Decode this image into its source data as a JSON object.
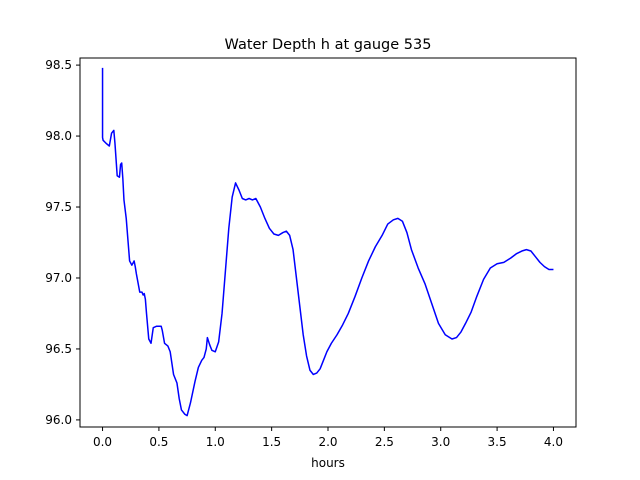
{
  "chart_data": {
    "type": "line",
    "title": "Water Depth h at gauge 535",
    "xlabel": "hours",
    "ylabel": "",
    "xlim": [
      -0.2,
      4.2
    ],
    "ylim": [
      95.95,
      98.55
    ],
    "grid": false,
    "x_ticks": [
      0.0,
      0.5,
      1.0,
      1.5,
      2.0,
      2.5,
      3.0,
      3.5,
      4.0
    ],
    "x_tick_labels": [
      "0.0",
      "0.5",
      "1.0",
      "1.5",
      "2.0",
      "2.5",
      "3.0",
      "3.5",
      "4.0"
    ],
    "y_ticks": [
      96.0,
      96.5,
      97.0,
      97.5,
      98.0,
      98.5
    ],
    "y_tick_labels": [
      "96.0",
      "96.5",
      "97.0",
      "97.5",
      "98.0",
      "98.5"
    ],
    "series": [
      {
        "color": "#0000ff",
        "x": [
          0.0,
          0.0,
          0.005,
          0.03,
          0.06,
          0.08,
          0.1,
          0.11,
          0.13,
          0.15,
          0.16,
          0.17,
          0.18,
          0.19,
          0.21,
          0.24,
          0.26,
          0.28,
          0.29,
          0.3,
          0.33,
          0.35,
          0.36,
          0.37,
          0.38,
          0.39,
          0.41,
          0.43,
          0.45,
          0.48,
          0.52,
          0.53,
          0.55,
          0.58,
          0.6,
          0.63,
          0.66,
          0.68,
          0.7,
          0.73,
          0.75,
          0.78,
          0.82,
          0.85,
          0.88,
          0.9,
          0.92,
          0.93,
          0.95,
          0.97,
          1.0,
          1.03,
          1.06,
          1.09,
          1.12,
          1.15,
          1.18,
          1.21,
          1.24,
          1.27,
          1.3,
          1.33,
          1.36,
          1.4,
          1.44,
          1.48,
          1.52,
          1.56,
          1.6,
          1.63,
          1.66,
          1.69,
          1.72,
          1.75,
          1.78,
          1.81,
          1.84,
          1.87,
          1.9,
          1.93,
          1.96,
          1.99,
          2.03,
          2.08,
          2.13,
          2.18,
          2.24,
          2.3,
          2.36,
          2.42,
          2.48,
          2.53,
          2.58,
          2.62,
          2.66,
          2.7,
          2.74,
          2.8,
          2.86,
          2.92,
          2.98,
          3.04,
          3.1,
          3.14,
          3.18,
          3.22,
          3.27,
          3.32,
          3.38,
          3.44,
          3.5,
          3.56,
          3.62,
          3.67,
          3.72,
          3.76,
          3.8,
          3.84,
          3.88,
          3.92,
          3.96,
          4.0
        ],
        "y": [
          98.48,
          97.99,
          97.97,
          97.95,
          97.93,
          98.02,
          98.04,
          97.95,
          97.72,
          97.71,
          97.8,
          97.81,
          97.7,
          97.55,
          97.42,
          97.12,
          97.09,
          97.12,
          97.08,
          97.03,
          96.9,
          96.9,
          96.88,
          96.89,
          96.85,
          96.75,
          96.57,
          96.54,
          96.65,
          96.66,
          96.66,
          96.63,
          96.54,
          96.52,
          96.48,
          96.32,
          96.26,
          96.15,
          96.07,
          96.04,
          96.03,
          96.12,
          96.27,
          96.37,
          96.42,
          96.44,
          96.5,
          96.58,
          96.53,
          96.49,
          96.48,
          96.55,
          96.75,
          97.05,
          97.35,
          97.57,
          97.67,
          97.62,
          97.56,
          97.55,
          97.56,
          97.55,
          97.56,
          97.5,
          97.42,
          97.35,
          97.31,
          97.3,
          97.32,
          97.33,
          97.3,
          97.2,
          97.0,
          96.8,
          96.6,
          96.45,
          96.35,
          96.32,
          96.33,
          96.36,
          96.42,
          96.48,
          96.54,
          96.6,
          96.67,
          96.75,
          96.87,
          97.0,
          97.12,
          97.22,
          97.3,
          97.38,
          97.41,
          97.42,
          97.4,
          97.32,
          97.2,
          97.07,
          96.96,
          96.82,
          96.68,
          96.6,
          96.57,
          96.58,
          96.62,
          96.68,
          96.76,
          96.87,
          96.99,
          97.07,
          97.1,
          97.11,
          97.14,
          97.17,
          97.19,
          97.2,
          97.19,
          97.15,
          97.11,
          97.08,
          97.06,
          97.06
        ]
      }
    ]
  }
}
